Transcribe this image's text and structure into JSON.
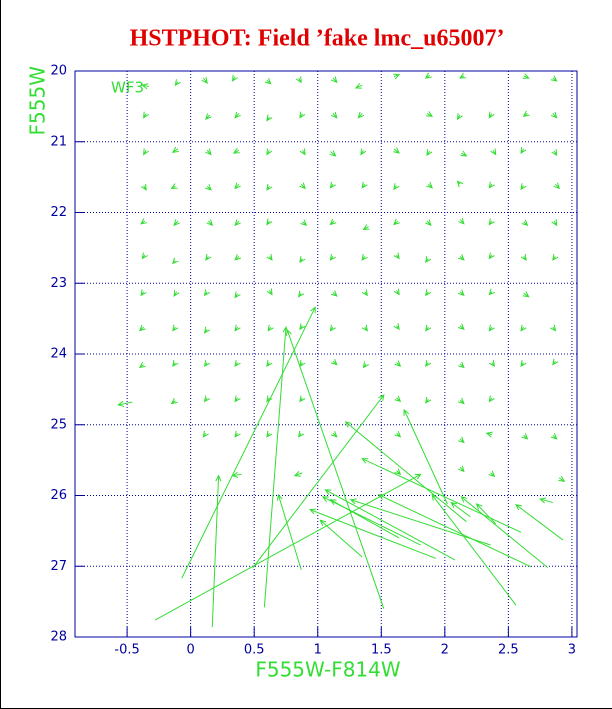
{
  "chart_data": {
    "type": "quiver",
    "title": "HSTPHOT: Field ’fake lmc_u65007’",
    "annotation": "WF3",
    "x_label": "F555W-F814W",
    "y_label": "F555W",
    "xlim": [
      -0.91,
      3.04
    ],
    "ylim": [
      28,
      20
    ],
    "xticks": [
      -0.5,
      0,
      0.5,
      1,
      1.5,
      2,
      2.5,
      3
    ],
    "yticks": [
      20,
      21,
      22,
      23,
      24,
      25,
      26,
      27,
      28
    ],
    "grid": true,
    "color": "#33dd33",
    "arrows": [
      [
        -0.33,
        20.22,
        -0.38,
        20.2
      ],
      [
        -0.1,
        20.15,
        -0.12,
        20.2
      ],
      [
        0.1,
        20.1,
        0.13,
        20.17
      ],
      [
        0.35,
        20.08,
        0.33,
        20.14
      ],
      [
        0.6,
        20.13,
        0.63,
        20.18
      ],
      [
        0.85,
        20.1,
        0.87,
        20.16
      ],
      [
        1.12,
        20.1,
        1.15,
        20.16
      ],
      [
        1.35,
        20.2,
        1.3,
        20.24
      ],
      [
        1.6,
        20.08,
        1.64,
        20.05
      ],
      [
        1.88,
        20.06,
        1.85,
        20.1
      ],
      [
        2.15,
        20.07,
        2.12,
        20.1
      ],
      [
        2.62,
        20.07,
        2.66,
        20.1
      ],
      [
        2.85,
        20.1,
        2.88,
        20.14
      ],
      [
        -0.35,
        20.6,
        -0.37,
        20.66
      ],
      [
        0.15,
        20.62,
        0.12,
        20.68
      ],
      [
        0.38,
        20.6,
        0.35,
        20.66
      ],
      [
        0.62,
        20.65,
        0.6,
        20.7
      ],
      [
        0.88,
        20.6,
        0.86,
        20.66
      ],
      [
        1.12,
        20.6,
        1.15,
        20.66
      ],
      [
        1.35,
        20.6,
        1.32,
        20.66
      ],
      [
        1.86,
        20.6,
        1.9,
        20.64
      ],
      [
        2.12,
        20.62,
        2.1,
        20.68
      ],
      [
        2.37,
        20.6,
        2.35,
        20.66
      ],
      [
        2.65,
        20.6,
        2.62,
        20.64
      ],
      [
        2.85,
        20.6,
        2.88,
        20.66
      ],
      [
        -0.35,
        21.12,
        -0.37,
        21.18
      ],
      [
        -0.1,
        21.1,
        -0.14,
        21.15
      ],
      [
        0.13,
        21.12,
        0.16,
        21.18
      ],
      [
        0.38,
        21.12,
        0.34,
        21.16
      ],
      [
        0.62,
        21.12,
        0.6,
        21.18
      ],
      [
        0.88,
        21.12,
        0.9,
        21.18
      ],
      [
        1.1,
        21.14,
        1.14,
        21.2
      ],
      [
        1.36,
        21.12,
        1.34,
        21.18
      ],
      [
        1.6,
        21.1,
        1.64,
        21.16
      ],
      [
        1.88,
        21.13,
        1.86,
        21.19
      ],
      [
        2.13,
        21.16,
        2.17,
        21.2
      ],
      [
        2.38,
        21.12,
        2.4,
        21.18
      ],
      [
        2.62,
        21.1,
        2.6,
        21.16
      ],
      [
        2.86,
        21.13,
        2.88,
        21.19
      ],
      [
        -0.37,
        21.62,
        -0.35,
        21.68
      ],
      [
        -0.12,
        21.63,
        -0.15,
        21.66
      ],
      [
        0.13,
        21.63,
        0.16,
        21.68
      ],
      [
        0.38,
        21.6,
        0.35,
        21.66
      ],
      [
        0.62,
        21.63,
        0.6,
        21.68
      ],
      [
        0.87,
        21.6,
        0.9,
        21.66
      ],
      [
        1.12,
        21.6,
        1.1,
        21.65
      ],
      [
        1.37,
        21.6,
        1.35,
        21.65
      ],
      [
        1.62,
        21.62,
        1.6,
        21.67
      ],
      [
        1.87,
        21.6,
        1.9,
        21.65
      ],
      [
        2.12,
        21.6,
        2.1,
        21.56
      ],
      [
        2.37,
        21.6,
        2.35,
        21.65
      ],
      [
        2.62,
        21.62,
        2.6,
        21.67
      ],
      [
        2.87,
        21.6,
        2.9,
        21.66
      ],
      [
        -0.36,
        22.12,
        -0.39,
        22.16
      ],
      [
        -0.1,
        22.12,
        -0.13,
        22.18
      ],
      [
        0.14,
        22.12,
        0.17,
        22.18
      ],
      [
        0.38,
        22.12,
        0.35,
        22.18
      ],
      [
        0.62,
        22.12,
        0.6,
        22.17
      ],
      [
        0.88,
        22.13,
        0.91,
        22.18
      ],
      [
        1.13,
        22.12,
        1.1,
        22.17
      ],
      [
        1.4,
        22.2,
        1.36,
        22.24
      ],
      [
        1.63,
        22.12,
        1.6,
        22.17
      ],
      [
        1.86,
        22.12,
        1.89,
        22.18
      ],
      [
        2.12,
        22.1,
        2.15,
        22.16
      ],
      [
        2.37,
        22.12,
        2.35,
        22.17
      ],
      [
        2.62,
        22.13,
        2.65,
        22.18
      ],
      [
        2.86,
        22.12,
        2.88,
        22.18
      ],
      [
        -0.36,
        22.6,
        -0.38,
        22.65
      ],
      [
        -0.12,
        22.68,
        -0.14,
        22.72
      ],
      [
        0.14,
        22.62,
        0.12,
        22.67
      ],
      [
        0.38,
        22.62,
        0.35,
        22.67
      ],
      [
        0.62,
        22.62,
        0.64,
        22.67
      ],
      [
        0.88,
        22.65,
        0.86,
        22.7
      ],
      [
        1.12,
        22.62,
        1.1,
        22.67
      ],
      [
        1.37,
        22.62,
        1.35,
        22.67
      ],
      [
        1.62,
        22.6,
        1.64,
        22.65
      ],
      [
        1.87,
        22.65,
        1.85,
        22.7
      ],
      [
        2.12,
        22.62,
        2.15,
        22.67
      ],
      [
        2.37,
        22.6,
        2.35,
        22.65
      ],
      [
        2.62,
        22.62,
        2.64,
        22.67
      ],
      [
        2.87,
        22.62,
        2.85,
        22.67
      ],
      [
        -0.37,
        23.12,
        -0.39,
        23.17
      ],
      [
        -0.11,
        23.12,
        -0.13,
        23.18
      ],
      [
        0.13,
        23.12,
        0.11,
        23.17
      ],
      [
        0.37,
        23.15,
        0.35,
        23.2
      ],
      [
        0.62,
        23.1,
        0.64,
        23.16
      ],
      [
        0.87,
        23.14,
        0.85,
        23.19
      ],
      [
        1.12,
        23.13,
        1.15,
        23.18
      ],
      [
        1.37,
        23.12,
        1.39,
        23.17
      ],
      [
        1.62,
        23.1,
        1.64,
        23.16
      ],
      [
        1.87,
        23.12,
        1.85,
        23.17
      ],
      [
        2.12,
        23.12,
        2.15,
        23.17
      ],
      [
        2.37,
        23.12,
        2.35,
        23.16
      ],
      [
        2.62,
        23.14,
        2.66,
        23.19
      ],
      [
        -0.37,
        23.62,
        -0.4,
        23.67
      ],
      [
        -0.12,
        23.62,
        -0.14,
        23.67
      ],
      [
        0.13,
        23.65,
        0.11,
        23.7
      ],
      [
        0.37,
        23.62,
        0.35,
        23.67
      ],
      [
        0.63,
        23.62,
        0.61,
        23.67
      ],
      [
        0.88,
        23.6,
        0.86,
        23.65
      ],
      [
        1.12,
        23.62,
        1.1,
        23.67
      ],
      [
        1.37,
        23.62,
        1.39,
        23.67
      ],
      [
        1.62,
        23.6,
        1.64,
        23.65
      ],
      [
        1.87,
        23.62,
        1.85,
        23.67
      ],
      [
        2.12,
        23.6,
        2.15,
        23.65
      ],
      [
        2.37,
        23.62,
        2.35,
        23.67
      ],
      [
        2.62,
        23.62,
        2.6,
        23.67
      ],
      [
        2.85,
        23.62,
        2.87,
        23.67
      ],
      [
        -0.37,
        24.15,
        -0.4,
        24.19
      ],
      [
        -0.12,
        24.12,
        -0.14,
        24.17
      ],
      [
        0.13,
        24.12,
        0.11,
        24.17
      ],
      [
        0.37,
        24.12,
        0.35,
        24.17
      ],
      [
        0.62,
        24.12,
        0.6,
        24.17
      ],
      [
        0.88,
        24.12,
        0.86,
        24.17
      ],
      [
        1.12,
        24.1,
        1.15,
        24.15
      ],
      [
        1.38,
        24.14,
        1.36,
        24.19
      ],
      [
        1.62,
        24.12,
        1.65,
        24.17
      ],
      [
        1.87,
        24.12,
        1.85,
        24.17
      ],
      [
        2.12,
        24.14,
        2.15,
        24.19
      ],
      [
        2.37,
        24.12,
        2.39,
        24.17
      ],
      [
        2.62,
        24.12,
        2.6,
        24.17
      ],
      [
        2.87,
        24.1,
        2.85,
        24.15
      ],
      [
        -0.46,
        24.68,
        -0.57,
        24.72
      ],
      [
        -0.12,
        24.66,
        -0.15,
        24.7
      ],
      [
        0.13,
        24.62,
        0.11,
        24.67
      ],
      [
        0.37,
        24.62,
        0.35,
        24.67
      ],
      [
        0.62,
        24.62,
        0.6,
        24.67
      ],
      [
        0.88,
        24.62,
        0.86,
        24.67
      ],
      [
        1.62,
        24.62,
        1.65,
        24.67
      ],
      [
        1.87,
        24.64,
        1.85,
        24.69
      ],
      [
        2.12,
        24.65,
        2.15,
        24.7
      ],
      [
        2.37,
        24.62,
        2.35,
        24.67
      ],
      [
        0.12,
        25.12,
        0.1,
        25.17
      ],
      [
        0.37,
        25.12,
        0.35,
        25.17
      ],
      [
        0.62,
        25.12,
        0.6,
        25.17
      ],
      [
        0.87,
        25.12,
        0.85,
        25.17
      ],
      [
        1.12,
        25.12,
        1.15,
        25.17
      ],
      [
        1.62,
        25.12,
        1.65,
        25.17
      ],
      [
        2.12,
        25.2,
        2.15,
        25.25
      ],
      [
        2.37,
        25.14,
        2.33,
        25.12
      ],
      [
        2.62,
        25.15,
        2.65,
        25.2
      ],
      [
        2.85,
        25.15,
        2.88,
        25.2
      ],
      [
        0.4,
        25.7,
        0.33,
        25.72
      ],
      [
        0.88,
        25.68,
        0.82,
        25.72
      ],
      [
        1.62,
        25.65,
        1.65,
        25.7
      ],
      [
        2.12,
        25.6,
        2.15,
        25.66
      ],
      [
        2.36,
        25.68,
        2.39,
        25.73
      ],
      [
        2.9,
        25.75,
        2.94,
        25.8
      ],
      [
        -0.07,
        27.17,
        0.98,
        23.34
      ],
      [
        -0.28,
        27.76,
        1.81,
        25.7
      ],
      [
        0.17,
        27.86,
        0.22,
        25.72
      ],
      [
        0.58,
        27.58,
        0.75,
        23.62
      ],
      [
        0.87,
        27.05,
        0.69,
        25.99
      ],
      [
        1.52,
        27.6,
        0.76,
        23.66
      ],
      [
        0.49,
        27.02,
        1.52,
        24.58
      ],
      [
        2.17,
        26.37,
        1.22,
        24.96
      ],
      [
        2.02,
        26.12,
        1.68,
        24.79
      ],
      [
        2.56,
        27.55,
        1.9,
        25.99
      ],
      [
        2.68,
        27.01,
        1.48,
        25.99
      ],
      [
        2.81,
        27.02,
        2.13,
        26.02
      ],
      [
        2.6,
        26.52,
        1.35,
        25.48
      ],
      [
        2.36,
        26.7,
        1.26,
        26.06
      ],
      [
        2.08,
        26.91,
        1.06,
        25.92
      ],
      [
        1.93,
        26.89,
        0.94,
        26.2
      ],
      [
        1.81,
        26.7,
        1.04,
        26.02
      ],
      [
        1.64,
        26.6,
        1.1,
        26.06
      ],
      [
        1.35,
        26.87,
        1.02,
        26.35
      ],
      [
        2.93,
        26.63,
        2.56,
        26.13
      ],
      [
        2.4,
        26.4,
        2.25,
        26.12
      ],
      [
        2.2,
        26.3,
        2.05,
        26.1
      ],
      [
        2.85,
        26.1,
        2.75,
        26.05
      ]
    ]
  }
}
